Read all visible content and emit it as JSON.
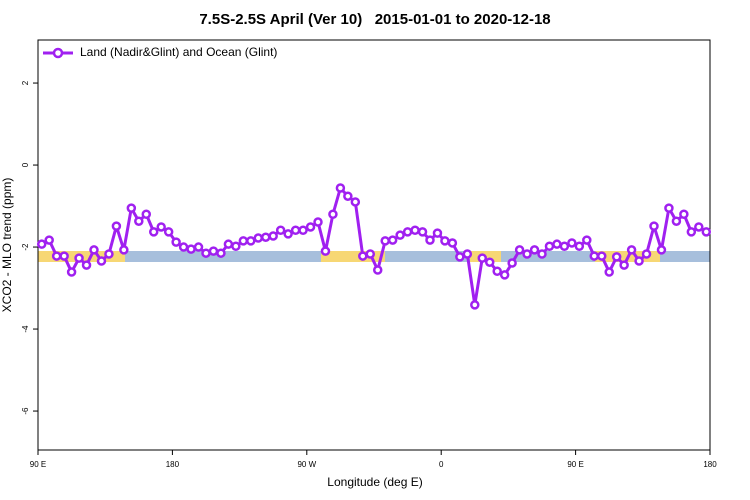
{
  "chart_data": {
    "type": "line",
    "title": "7.5S-2.5S April (Ver 10)   2015-01-01 to 2020-12-18",
    "x_label": "Longitude (deg E)",
    "y_label": "XCO2 - MLO trend (ppm)",
    "x": [
      92.5,
      97.5,
      102.5,
      107.5,
      112.5,
      117.5,
      122.5,
      127.5,
      132.5,
      137.5,
      142.5,
      147.5,
      152.5,
      157.5,
      162.5,
      167.5,
      172.5,
      177.5,
      182.5,
      187.5,
      192.5,
      197.5,
      202.5,
      207.5,
      212.5,
      217.5,
      222.5,
      227.5,
      232.5,
      237.5,
      242.5,
      247.5,
      252.5,
      257.5,
      262.5,
      267.5,
      272.5,
      277.5,
      282.5,
      287.5,
      292.5,
      297.5,
      302.5,
      307.5,
      312.5,
      317.5,
      322.5,
      327.5,
      332.5,
      337.5,
      342.5,
      347.5,
      352.5,
      357.5,
      362.5,
      367.5,
      372.5,
      377.5,
      382.5,
      387.5,
      392.5,
      397.5,
      402.5,
      407.5,
      412.5,
      417.5,
      422.5,
      427.5,
      432.5,
      437.5,
      442.5,
      447.5,
      452.5,
      457.5,
      462.5,
      467.5,
      472.5,
      477.5,
      482.5,
      487.5,
      492.5,
      497.5,
      502.5,
      507.5,
      512.5,
      517.5,
      522.5,
      527.5,
      532.5,
      537.5
    ],
    "series": [
      {
        "name": "Land (Nadir&Glint) and Ocean (Glint)",
        "color": "#a020f0",
        "values": [
          -1.93,
          -1.83,
          -2.22,
          -2.22,
          -2.61,
          -2.27,
          -2.44,
          -2.07,
          -2.34,
          -2.17,
          -1.49,
          -2.07,
          -1.05,
          -1.37,
          -1.2,
          -1.63,
          -1.51,
          -1.63,
          -1.88,
          -2.0,
          -2.05,
          -2.0,
          -2.15,
          -2.1,
          -2.15,
          -1.93,
          -1.98,
          -1.85,
          -1.85,
          -1.78,
          -1.76,
          -1.73,
          -1.59,
          -1.68,
          -1.59,
          -1.59,
          -1.51,
          -1.39,
          -2.1,
          -1.2,
          -0.56,
          -0.76,
          -0.9,
          -2.22,
          -2.17,
          -2.56,
          -1.85,
          -1.83,
          -1.71,
          -1.63,
          -1.59,
          -1.63,
          -1.83,
          -1.66,
          -1.85,
          -1.9,
          -2.24,
          -2.17,
          -3.41,
          -2.27,
          -2.37,
          -2.59,
          -2.68,
          -2.39,
          -2.07,
          -2.17,
          -2.07,
          -2.17,
          -1.98,
          -1.93,
          -1.98,
          -1.9,
          -1.98,
          -1.83,
          -2.22,
          -2.22,
          -2.61,
          -2.24,
          -2.44,
          -2.07,
          -2.34,
          -2.17,
          -1.49,
          -2.07,
          -1.05,
          -1.37,
          -1.2,
          -1.63,
          -1.51,
          -1.63
        ]
      }
    ],
    "xlim": [
      90,
      540
    ],
    "xticks": [
      {
        "value": 90,
        "label": "90 E"
      },
      180,
      {
        "value": 270,
        "label": "90 W"
      },
      {
        "value": 360,
        "label": "0"
      },
      {
        "value": 450,
        "label": "90 E"
      },
      {
        "value": 540,
        "label": "180"
      }
    ],
    "ylim": [
      -6.95,
      3.05
    ],
    "yticks": [
      -6,
      -4,
      -2,
      0,
      2
    ],
    "legend": "top-left"
  }
}
